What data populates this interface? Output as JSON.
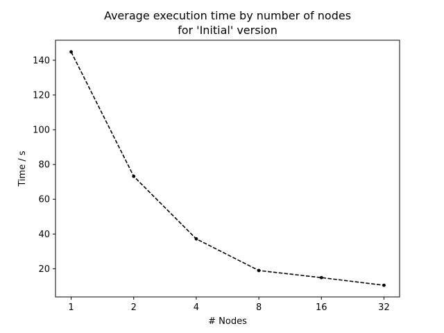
{
  "chart_data": {
    "type": "line",
    "title": "Average execution time by number of nodes\nfor 'Initial' version",
    "title_lines": [
      "Average execution time by number of nodes",
      "for 'Initial' version"
    ],
    "xlabel": "# Nodes",
    "ylabel": "Time / s",
    "x_scale": "log2",
    "xticks": [
      "1",
      "2",
      "4",
      "8",
      "16",
      "32"
    ],
    "yticks": [
      "20",
      "40",
      "60",
      "80",
      "100",
      "120",
      "140"
    ],
    "x": [
      1,
      2,
      4,
      8,
      16,
      32
    ],
    "series": [
      {
        "values": [
          144.8,
          73.2,
          37.2,
          19.0,
          14.9,
          10.5
        ],
        "color": "#000000",
        "line_style": "dashed",
        "marker": "circle"
      }
    ],
    "ylim": [
      3.8,
      151.5
    ],
    "grid": false,
    "legend": "none"
  }
}
